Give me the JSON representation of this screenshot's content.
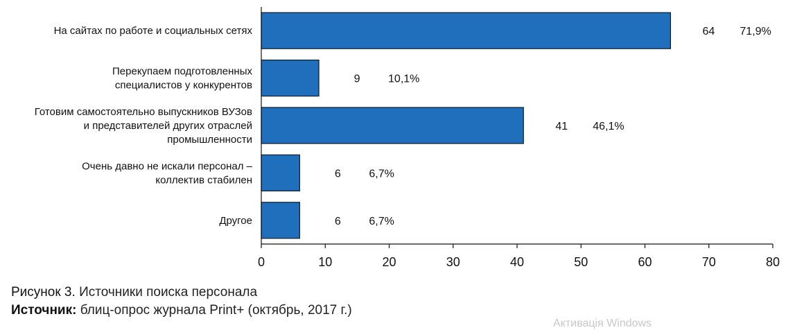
{
  "chart_data": {
    "type": "bar",
    "orientation": "horizontal",
    "categories": [
      [
        "На сайтах по работе и социальных сетях"
      ],
      [
        "Перекупаем подготовленных",
        "специалистов у конкурентов"
      ],
      [
        "Готовим самостоятельно выпускников ВУЗов",
        "и представителей других отраслей",
        "промышленности"
      ],
      [
        "Очень давно не искали персонал –",
        "коллектив стабилен"
      ],
      [
        "Другое"
      ]
    ],
    "values": [
      64,
      9,
      41,
      6,
      6
    ],
    "percent_labels": [
      "71,9%",
      "10,1%",
      "46,1%",
      "6,7%",
      "6,7%"
    ],
    "xlim": [
      0,
      80
    ],
    "xticks": [
      0,
      10,
      20,
      30,
      40,
      50,
      60,
      70,
      80
    ],
    "bar_color": "#1f6fbd",
    "bar_edge_color": "#0d1b2a",
    "grid": false,
    "legend": "none"
  },
  "caption": {
    "figure_lead": "Рисунок 3.",
    "figure_text": "Источники поиска персонала",
    "source_lead": "Источник:",
    "source_text": "блиц-опрос журнала Print+ (октябрь, 2017 г.)"
  },
  "watermark": "Активація Windows"
}
